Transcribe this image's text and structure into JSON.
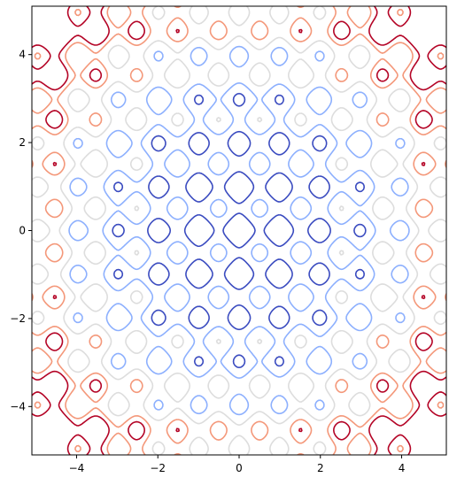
{
  "chart_data": {
    "type": "contour",
    "title": "",
    "xlabel": "",
    "ylabel": "",
    "xlim": [
      -5.1,
      5.1
    ],
    "ylim": [
      -5.1,
      5.1
    ],
    "x_ticks": [
      -4,
      -2,
      0,
      2,
      4
    ],
    "y_ticks": [
      -4,
      -2,
      0,
      2,
      4
    ],
    "x_tick_labels": [
      "−4",
      "−2",
      "0",
      "2",
      "4"
    ],
    "y_tick_labels": [
      "−4",
      "−2",
      "0",
      "2",
      "4"
    ],
    "grid": false,
    "legend": "none",
    "colormap": "coolwarm",
    "function": "z = r^2/25 + 0.5*(sin(pi*x)^2 + sin(pi*y)^2)",
    "levels": [
      {
        "value": 0.45,
        "color": "#3b4cc0"
      },
      {
        "value": 0.85,
        "color": "#8db0fe"
      },
      {
        "value": 1.25,
        "color": "#dddddd"
      },
      {
        "value": 1.65,
        "color": "#f4987a"
      },
      {
        "value": 1.9,
        "color": "#b40426"
      }
    ]
  }
}
